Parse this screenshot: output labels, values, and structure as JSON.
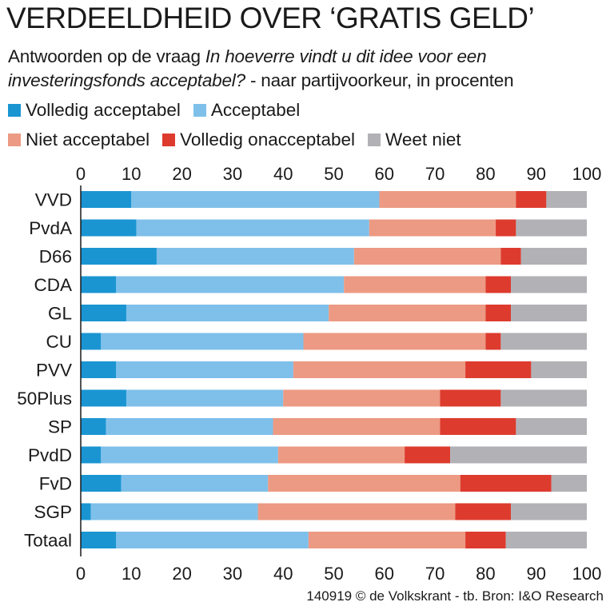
{
  "header": {
    "title": "VERDEELDHEID OVER ‘GRATIS GELD’",
    "subtitle_plain_1": "Antwoorden op de vraag ",
    "subtitle_italic": "In hoeverre vindt u dit idee voor een investeringsfonds acceptabel?",
    "subtitle_plain_2": " - naar partijvoorkeur, in procenten"
  },
  "footer": {
    "source": "140919 © de Volkskrant - tb. Bron: I&O Research"
  },
  "chart_data": {
    "type": "bar",
    "orientation": "horizontal",
    "stacked": true,
    "xlim": [
      0,
      100
    ],
    "ticks": [
      0,
      10,
      20,
      30,
      40,
      50,
      60,
      70,
      80,
      90,
      100
    ],
    "grid": false,
    "legend_placement": "top",
    "categories": [
      "VVD",
      "PvdA",
      "D66",
      "CDA",
      "GL",
      "CU",
      "PVV",
      "50Plus",
      "SP",
      "PvdD",
      "FvD",
      "SGP",
      "Totaal"
    ],
    "series": [
      {
        "name": "Volledig acceptabel",
        "color": "#1a95d2",
        "values": [
          10,
          11,
          15,
          7,
          9,
          4,
          7,
          9,
          5,
          4,
          8,
          2,
          7
        ]
      },
      {
        "name": "Acceptabel",
        "color": "#7fc0ea",
        "values": [
          49,
          46,
          39,
          45,
          40,
          40,
          35,
          31,
          33,
          35,
          29,
          33,
          38
        ]
      },
      {
        "name": "Niet acceptabel",
        "color": "#ec9a83",
        "values": [
          27,
          25,
          29,
          28,
          31,
          36,
          34,
          31,
          33,
          25,
          38,
          39,
          31
        ]
      },
      {
        "name": "Volledig onacceptabel",
        "color": "#dd3b2e",
        "values": [
          6,
          4,
          4,
          5,
          5,
          3,
          13,
          12,
          15,
          9,
          18,
          11,
          8
        ]
      },
      {
        "name": "Weet niet",
        "color": "#b1b1b6",
        "values": [
          8,
          14,
          13,
          15,
          15,
          17,
          11,
          17,
          14,
          27,
          7,
          15,
          16
        ]
      }
    ]
  }
}
